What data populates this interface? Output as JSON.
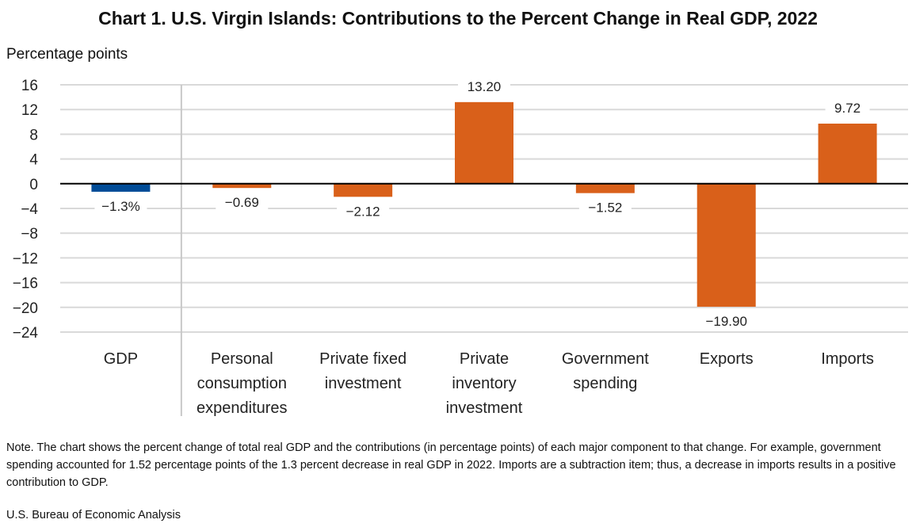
{
  "chart_data": {
    "type": "bar",
    "title": "Chart 1. U.S. Virgin Islands: Contributions to the Percent Change in Real GDP, 2022",
    "ylabel": "Percentage points",
    "xlabel": "",
    "categories": [
      [
        "GDP"
      ],
      [
        "Personal",
        "consumption",
        "expenditures"
      ],
      [
        "Private fixed",
        "investment"
      ],
      [
        "Private",
        "inventory",
        "investment"
      ],
      [
        "Government",
        "spending"
      ],
      [
        "Exports"
      ],
      [
        "Imports"
      ]
    ],
    "values": [
      -1.3,
      -0.69,
      -2.12,
      13.2,
      -1.52,
      -19.9,
      9.72
    ],
    "data_labels": [
      "−1.3%",
      "−0.69",
      "−2.12",
      "13.20",
      "−1.52",
      "−19.90",
      "9.72"
    ],
    "yticks": [
      16,
      12,
      8,
      4,
      0,
      -4,
      -8,
      -12,
      -16,
      -20,
      -24
    ],
    "ytick_labels": [
      "16",
      "12",
      "8",
      "4",
      "0",
      "−4",
      "−8",
      "−12",
      "−16",
      "−20",
      "−24"
    ],
    "ylim": [
      -24,
      16
    ],
    "grid": true,
    "colors": {
      "gdp": "#004C97",
      "components": "#D9601A"
    }
  },
  "note": "Note. The chart shows the percent change of total real GDP and the contributions (in percentage points) of each major component to that change. For example, government spending accounted for 1.52 percentage points of the 1.3 percent decrease in real GDP in 2022. Imports are a subtraction item; thus, a decrease in imports results in a positive contribution to GDP.",
  "source": "U.S. Bureau of Economic Analysis"
}
